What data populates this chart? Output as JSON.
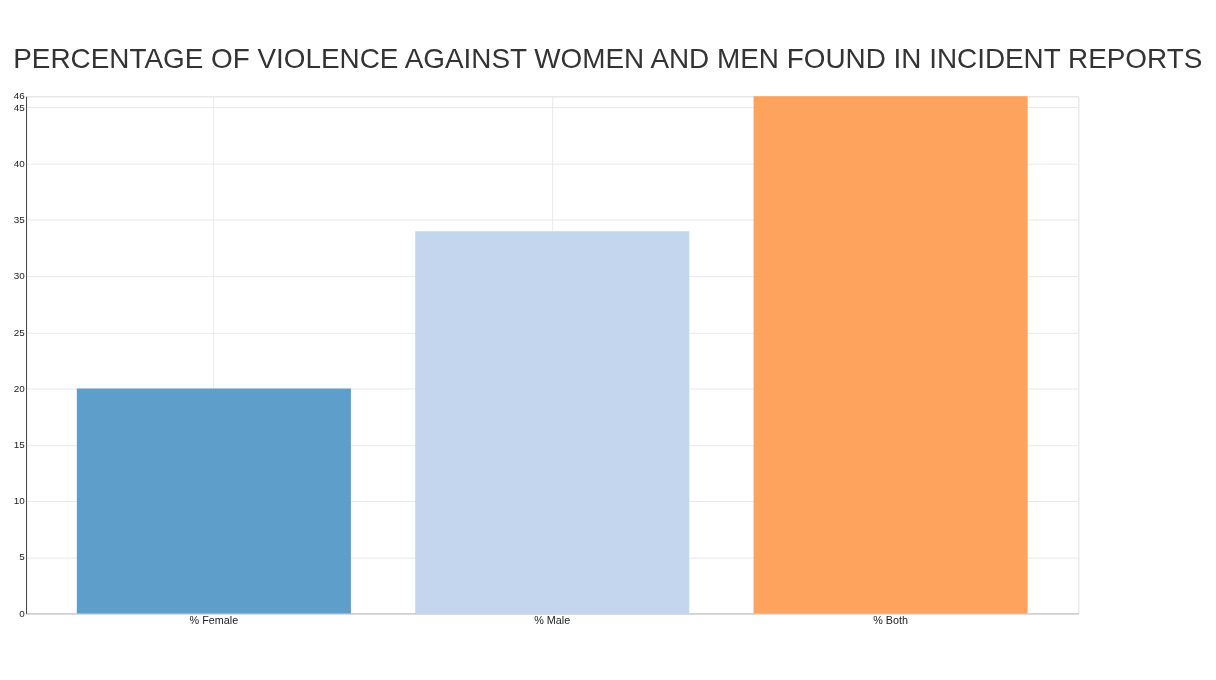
{
  "chart_data": {
    "type": "bar",
    "title": "PERCENTAGE OF VIOLENCE AGAINST WOMEN AND MEN FOUND IN INCIDENT REPORTS",
    "categories": [
      "% Female",
      "% Male",
      "% Both"
    ],
    "values": [
      20,
      34,
      46
    ],
    "colors": [
      "#5599c7",
      "#c1d4ec",
      "#fe9e55"
    ],
    "ylim": [
      0,
      46
    ],
    "yticks": [
      0,
      5,
      10,
      15,
      20,
      25,
      30,
      35,
      40,
      45,
      46
    ],
    "grid": true
  }
}
